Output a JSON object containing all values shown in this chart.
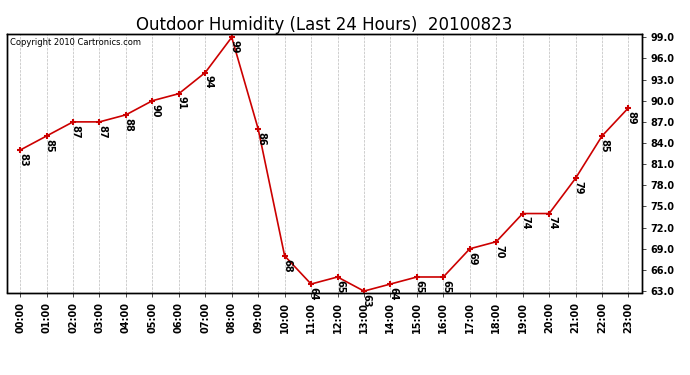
{
  "title": "Outdoor Humidity (Last 24 Hours)  20100823",
  "copyright": "Copyright 2010 Cartronics.com",
  "x_labels": [
    "00:00",
    "01:00",
    "02:00",
    "03:00",
    "04:00",
    "05:00",
    "06:00",
    "07:00",
    "08:00",
    "09:00",
    "10:00",
    "11:00",
    "12:00",
    "13:00",
    "14:00",
    "15:00",
    "16:00",
    "17:00",
    "18:00",
    "19:00",
    "20:00",
    "21:00",
    "22:00",
    "23:00"
  ],
  "hours": [
    0,
    1,
    2,
    3,
    4,
    5,
    6,
    7,
    8,
    9,
    10,
    11,
    12,
    13,
    14,
    15,
    16,
    17,
    18,
    19,
    20,
    21,
    22,
    23
  ],
  "humidity": [
    83,
    85,
    87,
    87,
    88,
    90,
    91,
    94,
    99,
    86,
    68,
    64,
    65,
    63,
    64,
    65,
    65,
    69,
    70,
    74,
    74,
    79,
    85,
    89
  ],
  "ylim_min": 63.0,
  "ylim_max": 99.0,
  "ytick_min": 63.0,
  "ytick_max": 99.0,
  "ytick_step": 3.0,
  "line_color": "#cc0000",
  "marker_color": "#cc0000",
  "bg_color": "#ffffff",
  "grid_color": "#bbbbbb",
  "title_fontsize": 12,
  "annot_fontsize": 7,
  "tick_fontsize": 7,
  "copyright_fontsize": 6
}
